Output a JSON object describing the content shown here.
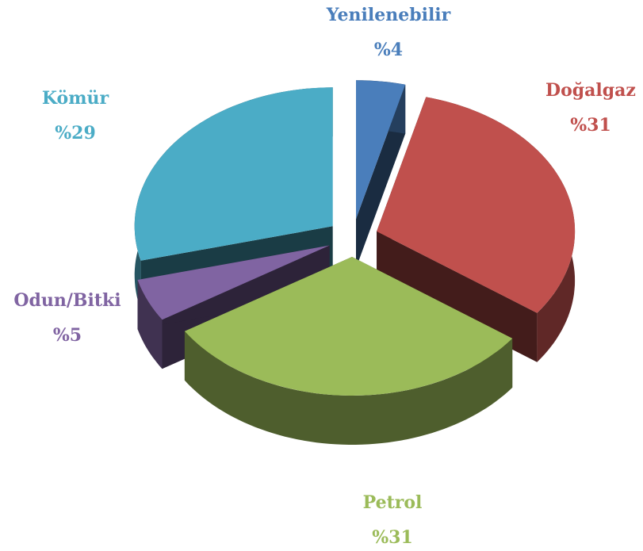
{
  "chart_data": {
    "type": "pie3d",
    "categories": [
      "Yenilenebilir",
      "Doğalgaz",
      "Petrol",
      "Odun/Bitki",
      "Kömür"
    ],
    "values": [
      4,
      31,
      31,
      5,
      29
    ],
    "value_labels": [
      "%4",
      "%31",
      "%31",
      "%5",
      "%29"
    ],
    "colors": [
      "#4a7ebb",
      "#c0504d",
      "#9bbb59",
      "#8064a2",
      "#4bacc6"
    ]
  }
}
